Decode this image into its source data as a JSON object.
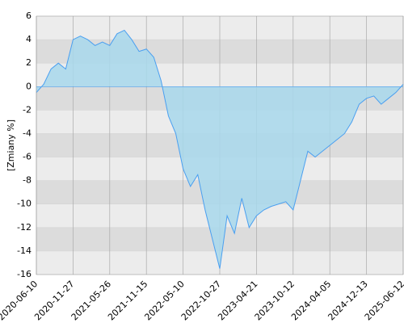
{
  "chart_data": {
    "type": "area",
    "y_label": "[Zmiany %]",
    "x": [
      "2020-06-10",
      null,
      null,
      null,
      null,
      "2020-11-27",
      null,
      null,
      null,
      null,
      "2021-05-26",
      null,
      null,
      null,
      null,
      "2021-11-15",
      null,
      null,
      null,
      null,
      "2022-05-10",
      null,
      null,
      null,
      null,
      "2022-10-27",
      null,
      null,
      null,
      null,
      "2023-04-21",
      null,
      null,
      null,
      null,
      "2023-10-12",
      null,
      null,
      null,
      null,
      "2024-04-05",
      null,
      null,
      null,
      null,
      "2024-12-13",
      null,
      null,
      null,
      null,
      "2025-06-12"
    ],
    "values": [
      -0.5,
      0.2,
      1.5,
      2.0,
      1.5,
      4.0,
      4.3,
      4.0,
      3.5,
      3.8,
      3.5,
      4.5,
      4.8,
      4.0,
      3.0,
      3.2,
      2.5,
      0.5,
      -2.5,
      -4.0,
      -7.0,
      -8.5,
      -7.5,
      -10.5,
      -13.0,
      -15.5,
      -11.0,
      -12.5,
      -9.5,
      -12.0,
      -11.0,
      -10.5,
      -10.2,
      -10.0,
      -9.8,
      -10.5,
      -8.0,
      -5.5,
      -6.0,
      -5.5,
      -5.0,
      -4.5,
      -4.0,
      -3.0,
      -1.5,
      -1.0,
      -0.8,
      -1.5,
      -1.0,
      -0.5,
      0.2
    ],
    "color": "#4a9ff0",
    "fill": "#a8d8ec",
    "ylim": [
      -16,
      6
    ],
    "yticks": [
      -16,
      -14,
      -12,
      -10,
      -8,
      -6,
      -4,
      -2,
      0,
      2,
      4,
      6
    ],
    "grid": true
  }
}
